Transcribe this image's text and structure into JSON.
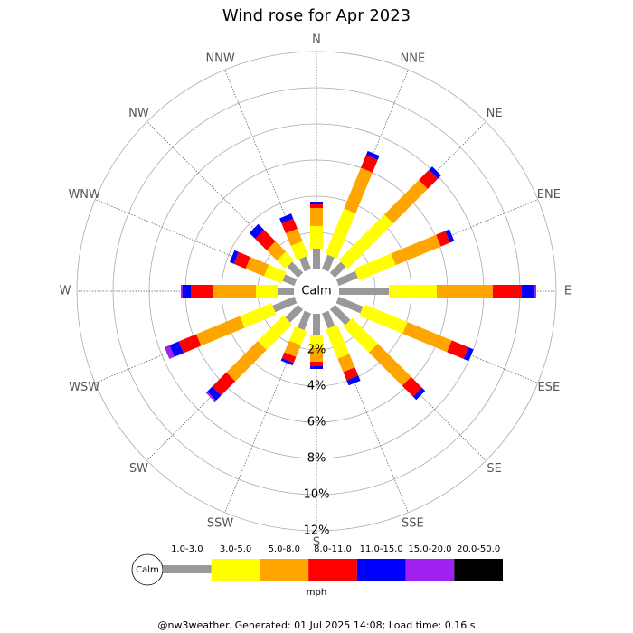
{
  "chart_data": {
    "type": "windrose",
    "title": "Wind rose for Apr 2023",
    "calm_label": "Calm",
    "categories": [
      "N",
      "NNE",
      "NE",
      "ENE",
      "E",
      "ESE",
      "SE",
      "SSE",
      "S",
      "SSW",
      "SW",
      "WSW",
      "W",
      "WNW",
      "NW",
      "NNW"
    ],
    "series": [
      {
        "name": "1.0-3.0",
        "color": "#999999",
        "values": [
          1.1,
          0.85,
          0.85,
          1.15,
          2.75,
          1.45,
          1.2,
          0.9,
          1.15,
          1.0,
          1.0,
          1.3,
          0.9,
          0.7,
          0.85,
          0.75
        ]
      },
      {
        "name": "3.0-5.0",
        "color": "#ffff00",
        "values": [
          1.25,
          2.7,
          3.55,
          2.2,
          2.65,
          2.6,
          2.0,
          1.75,
          0.75,
          0.85,
          2.0,
          1.9,
          1.2,
          1.05,
          0.65,
          0.85
        ]
      },
      {
        "name": "5.0-8.0",
        "color": "#ffa500",
        "values": [
          1.0,
          2.45,
          2.7,
          2.7,
          3.1,
          2.65,
          2.6,
          0.8,
          0.75,
          0.7,
          2.45,
          2.6,
          2.4,
          1.1,
          0.8,
          0.75
        ]
      },
      {
        "name": "8.0-11.0",
        "color": "#ff0000",
        "values": [
          0.2,
          0.75,
          0.8,
          0.55,
          1.6,
          1.0,
          0.85,
          0.5,
          0.25,
          0.35,
          1.1,
          1.05,
          1.2,
          0.7,
          0.9,
          0.6
        ]
      },
      {
        "name": "11.0-15.0",
        "color": "#0000ff",
        "values": [
          0.15,
          0.25,
          0.25,
          0.25,
          0.7,
          0.3,
          0.25,
          0.3,
          0.15,
          0.15,
          0.4,
          0.55,
          0.45,
          0.25,
          0.45,
          0.3
        ]
      },
      {
        "name": "15.0-20.0",
        "color": "#a020f0",
        "values": [
          0,
          0,
          0,
          0,
          0.1,
          0,
          0,
          0,
          0,
          0,
          0.1,
          0.3,
          0.1,
          0,
          0,
          0
        ]
      },
      {
        "name": "20.0-50.0",
        "color": "#000000",
        "values": [
          0,
          0,
          0,
          0,
          0,
          0,
          0,
          0,
          0,
          0,
          0,
          0,
          0,
          0,
          0,
          0
        ]
      }
    ],
    "rlim": [
      0,
      12
    ],
    "rticks": [
      {
        "value": 2,
        "label": "2%"
      },
      {
        "value": 4,
        "label": "4%"
      },
      {
        "value": 6,
        "label": "6%"
      },
      {
        "value": 8,
        "label": "8%"
      },
      {
        "value": 10,
        "label": "10%"
      },
      {
        "value": 12,
        "label": "12%"
      }
    ],
    "unit_label": "mph",
    "footer": "@nw3weather. Generated: 01 Jul 2025 14:08; Load time: 0.16 s"
  }
}
